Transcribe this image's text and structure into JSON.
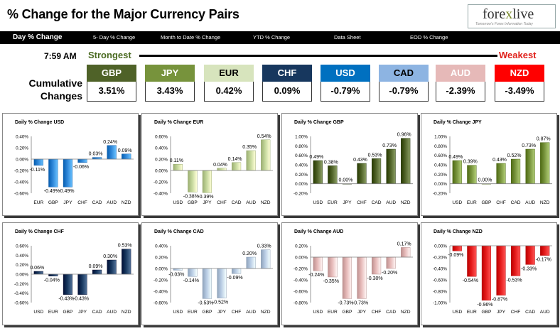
{
  "header": {
    "title": "% Change for the Major Currency Pairs",
    "logo_text_a": "fore",
    "logo_text_x": "x",
    "logo_text_b": "live",
    "logo_tagline": "Tomorrow's Forex Information Today"
  },
  "nav": {
    "items": [
      {
        "label": "Day % Change",
        "active": true
      },
      {
        "label": "5- Day % Change",
        "active": false
      },
      {
        "label": "Month to Date % Change",
        "active": false
      },
      {
        "label": "YTD % Change",
        "active": false
      },
      {
        "label": "Data Sheet",
        "active": false
      },
      {
        "label": "EOD % Change",
        "active": false
      }
    ]
  },
  "summary": {
    "time": "7:59 AM",
    "strongest_label": "Strongest",
    "weakest_label": "Weakest",
    "cumulative_label": "Cumulative Changes",
    "currencies": [
      {
        "code": "GBP",
        "value": "3.51%",
        "bg": "#4f6228",
        "fg": "#ffffff"
      },
      {
        "code": "JPY",
        "value": "3.43%",
        "bg": "#77933c",
        "fg": "#ffffff"
      },
      {
        "code": "EUR",
        "value": "0.42%",
        "bg": "#d7e4bd",
        "fg": "#000000"
      },
      {
        "code": "CHF",
        "value": "0.09%",
        "bg": "#17375e",
        "fg": "#ffffff"
      },
      {
        "code": "USD",
        "value": "-0.79%",
        "bg": "#0070c0",
        "fg": "#ffffff"
      },
      {
        "code": "CAD",
        "value": "-0.79%",
        "bg": "#8db4e2",
        "fg": "#000000"
      },
      {
        "code": "AUD",
        "value": "-2.39%",
        "bg": "#e6b9b8",
        "fg": "#ffffff"
      },
      {
        "code": "NZD",
        "value": "-3.49%",
        "bg": "#ff0000",
        "fg": "#ffffff"
      }
    ]
  },
  "chart_data": [
    {
      "type": "bar",
      "title": "Daily % Change USD",
      "color": "#2e86d8",
      "categories": [
        "EUR",
        "GBP",
        "JPY",
        "CHF",
        "CAD",
        "AUD",
        "NZD"
      ],
      "values": [
        -0.11,
        -0.49,
        -0.49,
        -0.06,
        0.03,
        0.24,
        0.09
      ],
      "labels": [
        "-0.11%",
        "-0.49%",
        "-0.49%",
        "-0.06%",
        "0.03%",
        "0.24%",
        "0.09%"
      ],
      "ylim": [
        -0.6,
        0.4
      ],
      "yticks": [
        "0.40%",
        "0.20%",
        "0.00%",
        "-0.20%",
        "-0.40%",
        "-0.60%"
      ]
    },
    {
      "type": "bar",
      "title": "Daily % Change EUR",
      "color": "#c4d79b",
      "categories": [
        "USD",
        "GBP",
        "JPY",
        "CHF",
        "CAD",
        "AUD",
        "NZD"
      ],
      "values": [
        0.11,
        -0.38,
        -0.39,
        0.04,
        0.14,
        0.35,
        0.54
      ],
      "labels": [
        "0.11%",
        "-0.38%",
        "-0.39%",
        "0.04%",
        "0.14%",
        "0.35%",
        "0.54%"
      ],
      "ylim": [
        -0.4,
        0.6
      ],
      "yticks": [
        "0.60%",
        "0.40%",
        "0.20%",
        "0.00%",
        "-0.20%",
        "-0.40%"
      ]
    },
    {
      "type": "bar",
      "title": "Daily % Change GBP",
      "color": "#4f6228",
      "categories": [
        "USD",
        "EUR",
        "JPY",
        "CHF",
        "CAD",
        "AUD",
        "NZD"
      ],
      "values": [
        0.49,
        0.38,
        0.0,
        0.43,
        0.53,
        0.73,
        0.96
      ],
      "labels": [
        "0.49%",
        "0.38%",
        "0.00%",
        "0.43%",
        "0.53%",
        "0.73%",
        "0.96%"
      ],
      "ylim": [
        -0.2,
        1.0
      ],
      "yticks": [
        "1.00%",
        "0.80%",
        "0.60%",
        "0.40%",
        "0.20%",
        "0.00%",
        "-0.20%"
      ]
    },
    {
      "type": "bar",
      "title": "Daily % Change JPY",
      "color": "#77933c",
      "categories": [
        "USD",
        "EUR",
        "GBP",
        "CHF",
        "CAD",
        "AUD",
        "NZD"
      ],
      "values": [
        0.49,
        0.39,
        0.0,
        0.43,
        0.52,
        0.73,
        0.87
      ],
      "labels": [
        "0.49%",
        "0.39%",
        "0.00%",
        "0.43%",
        "0.52%",
        "0.73%",
        "0.87%"
      ],
      "ylim": [
        -0.2,
        1.0
      ],
      "yticks": [
        "1.00%",
        "0.80%",
        "0.60%",
        "0.40%",
        "0.20%",
        "0.00%",
        "-0.20%"
      ]
    },
    {
      "type": "bar",
      "title": "Daily % Change CHF",
      "color": "#17375e",
      "categories": [
        "USD",
        "EUR",
        "GBP",
        "JPY",
        "CAD",
        "AUD",
        "NZD"
      ],
      "values": [
        0.06,
        -0.04,
        -0.43,
        -0.43,
        0.09,
        0.3,
        0.53
      ],
      "labels": [
        "0.06%",
        "-0.04%",
        "-0.43%",
        "-0.43%",
        "0.09%",
        "0.30%",
        "0.53%"
      ],
      "ylim": [
        -0.6,
        0.6
      ],
      "yticks": [
        "0.60%",
        "0.40%",
        "0.20%",
        "0.00%",
        "-0.20%",
        "-0.40%",
        "-0.60%"
      ]
    },
    {
      "type": "bar",
      "title": "Daily % Change CAD",
      "color": "#b8cce4",
      "categories": [
        "USD",
        "EUR",
        "GBP",
        "JPY",
        "CHF",
        "AUD",
        "NZD"
      ],
      "values": [
        -0.03,
        -0.14,
        -0.53,
        -0.52,
        -0.09,
        0.2,
        0.33
      ],
      "labels": [
        "-0.03%",
        "-0.14%",
        "-0.53%",
        "-0.52%",
        "-0.09%",
        "0.20%",
        "0.33%"
      ],
      "ylim": [
        -0.6,
        0.4
      ],
      "yticks": [
        "0.40%",
        "0.20%",
        "0.00%",
        "-0.20%",
        "-0.40%",
        "-0.60%"
      ]
    },
    {
      "type": "bar",
      "title": "Daily % Change AUD",
      "color": "#e6b9b8",
      "categories": [
        "USD",
        "EUR",
        "GBP",
        "JPY",
        "CHF",
        "CAD",
        "NZD"
      ],
      "values": [
        -0.24,
        -0.35,
        -0.73,
        -0.73,
        -0.3,
        -0.2,
        0.17
      ],
      "labels": [
        "-0.24%",
        "-0.35%",
        "-0.73%",
        "-0.73%",
        "-0.30%",
        "-0.20%",
        "0.17%"
      ],
      "ylim": [
        -0.8,
        0.2
      ],
      "yticks": [
        "0.20%",
        "0.00%",
        "-0.20%",
        "-0.40%",
        "-0.60%",
        "-0.80%"
      ]
    },
    {
      "type": "bar",
      "title": "Daily % Change NZD",
      "color": "#e41a1a",
      "categories": [
        "USD",
        "EUR",
        "GBP",
        "JPY",
        "CHF",
        "CAD",
        "AUD"
      ],
      "values": [
        -0.09,
        -0.54,
        -0.96,
        -0.87,
        -0.53,
        -0.33,
        -0.17
      ],
      "labels": [
        "-0.09%",
        "-0.54%",
        "-0.96%",
        "-0.87%",
        "-0.53%",
        "-0.33%",
        "-0.17%"
      ],
      "ylim": [
        -1.0,
        0.0
      ],
      "yticks": [
        "0.00%",
        "-0.20%",
        "-0.40%",
        "-0.60%",
        "-0.80%",
        "-1.00%"
      ]
    }
  ]
}
